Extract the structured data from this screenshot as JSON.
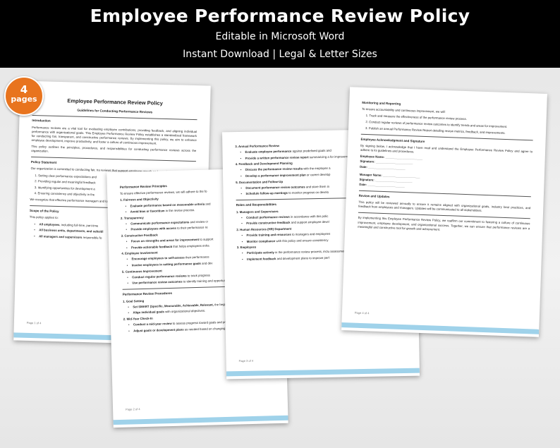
{
  "header": {
    "title": "Employee Performance Review Policy",
    "line1": "Editable in Microsoft Word",
    "line2": "Instant Download | Legal & Letter Sizes"
  },
  "badge": {
    "number": "4",
    "label": "pages"
  },
  "pages": [
    {
      "blocks": [
        {
          "title": "Employee Performance Review Policy"
        },
        {
          "subtitle": "Guidelines for Conducting Performance Reviews"
        },
        {
          "heading": "Introduction"
        },
        {
          "text": "Performance reviews are a vital tool for evaluating employee contributions, providing feedback, and aligning individual performance with organizational goals. This Employee Performance Review Policy establishes a standardized framework for conducting fair, transparent, and constructive performance reviews. By implementing this policy, we aim to enhance employee development, improve productivity, and foster a culture of continuous improvement."
        },
        {
          "text": "This policy outlines the principles, procedures, and responsibilities for conducting performance reviews across the organization."
        },
        {
          "heading": "Policy Statement"
        },
        {
          "text": "Our organization is committed to conducting fair, tra reviews that support employee growth and organiza"
        },
        {
          "num": "1. Setting clear performance expectations and"
        },
        {
          "num": "2. Providing regular and meaningful feedback"
        },
        {
          "num": "3. Identifying opportunities for development a"
        },
        {
          "num": "4. Ensuring consistency and objectivity in the"
        },
        {
          "text": "We recognize that effective performance managem and long-term success."
        },
        {
          "heading": "Scope of the Policy"
        },
        {
          "text": "This policy applies to:"
        },
        {
          "bullet": {
            "bold": "All employees",
            "text": ", including full-time, part-time"
          }
        },
        {
          "bullet": {
            "bold": "All business units, departments, and subsidi",
            "text": ""
          }
        },
        {
          "bullet": {
            "bold": "All managers and supervisors",
            "text": " responsible fo"
          }
        }
      ],
      "footer": "Page 1 of 4"
    },
    {
      "blocks": [
        {
          "heading": "Performance Review Principles"
        },
        {
          "text": "To ensure effective performance reviews, we will adhere to the fo"
        },
        {
          "sub": "1. Fairness and Objectivity"
        },
        {
          "bullet": {
            "bold": "Evaluate performance based on measurable criteria",
            "text": " and"
          }
        },
        {
          "bullet": {
            "bold": "Avoid bias or favoritism",
            "text": " in the review process."
          }
        },
        {
          "sub": "2. Transparency"
        },
        {
          "bullet": {
            "bold": "Communicate performance expectations",
            "text": " and review cr"
          }
        },
        {
          "bullet": {
            "bold": "Provide employees with access",
            "text": " to their performance re"
          }
        },
        {
          "sub": "3. Constructive Feedback"
        },
        {
          "bullet": {
            "bold": "Focus on strengths and areas for improvement",
            "text": " to support"
          }
        },
        {
          "bullet": {
            "bold": "Provide actionable feedback",
            "text": " that helps employees enha"
          }
        },
        {
          "sub": "4. Employee Involvement"
        },
        {
          "bullet": {
            "bold": "Encourage employees to self-assess",
            "text": " their performance"
          }
        },
        {
          "bullet": {
            "bold": "Involve employees in setting performance goals",
            "text": " and dev"
          }
        },
        {
          "sub": "5. Continuous Improvement"
        },
        {
          "bullet": {
            "bold": "Conduct regular performance reviews",
            "text": " to track progress"
          }
        },
        {
          "bullet": {
            "bold": "Use performance review outcomes",
            "text": " to identify training and opportunities."
          }
        },
        {
          "heading": "Performance Review Procedures"
        },
        {
          "sub": "1. Goal Setting"
        },
        {
          "bullet": {
            "bold": "Set SMART (Specific, Measurable, Achievable, Relevant,",
            "text": " the beginning of the review period."
          }
        },
        {
          "bullet": {
            "bold": "Align individual goals",
            "text": " with organizational objectives."
          }
        },
        {
          "sub": "2. Mid-Year Check-In"
        },
        {
          "bullet": {
            "bold": "Conduct a mid-year review",
            "text": " to assess progress toward goals and provide feedback."
          }
        },
        {
          "bullet": {
            "bold": "Adjust goals or development plans",
            "text": " as needed based on changing priorities or circumstances."
          }
        }
      ],
      "footer": "Page 2 of 4"
    },
    {
      "blocks": [
        {
          "sub": "3. Annual Performance Review"
        },
        {
          "bullet": {
            "bold": "Evaluate employee performance",
            "text": " against predefined goals and"
          }
        },
        {
          "bullet": {
            "bold": "Provide a written performance review report",
            "text": " summarizing a for improvement."
          }
        },
        {
          "sub": "4. Feedback and Development Planning"
        },
        {
          "bullet": {
            "bold": "Discuss the performance review results",
            "text": " with the employee a"
          }
        },
        {
          "bullet": {
            "bold": "Develop a performance improvement plan",
            "text": " or career develop"
          }
        },
        {
          "sub": "5. Documentation and Follow-Up"
        },
        {
          "bullet": {
            "bold": "Document performance review outcomes",
            "text": " and store them in"
          }
        },
        {
          "bullet": {
            "bold": "Schedule follow-up meetings",
            "text": " to monitor progress on develo"
          }
        },
        {
          "heading": "Roles and Responsibilities"
        },
        {
          "sub": "1. Managers and Supervisors"
        },
        {
          "bullet": {
            "bold": "Conduct performance reviews",
            "text": " in accordance with this polic"
          }
        },
        {
          "bullet": {
            "bold": "Provide constructive feedback",
            "text": " and support employee devel"
          }
        },
        {
          "sub": "2. Human Resources (HR) Department"
        },
        {
          "bullet": {
            "bold": "Provide training and resources",
            "text": " to managers and employees"
          }
        },
        {
          "bullet": {
            "bold": "Monitor compliance",
            "text": " with this policy and ensure consistency"
          }
        },
        {
          "sub": "3. Employees"
        },
        {
          "bullet": {
            "bold": "Participate actively",
            "text": " in the performance review process, inclu assessment."
          }
        },
        {
          "bullet": {
            "bold": "Implement feedback",
            "text": " and development plans to improve perf"
          }
        }
      ],
      "footer": "Page 3 of 4"
    },
    {
      "blocks": [
        {
          "heading": "Monitoring and Reporting"
        },
        {
          "text": "To ensure accountability and continuous improvement, we will:"
        },
        {
          "num": "1. Track and measure the effectiveness of the performance review process."
        },
        {
          "num": "2. Conduct regular reviews of performance review outcomes to identify trends and areas for improvement."
        },
        {
          "num": "3. Publish an annual Performance Review Report detailing review metrics, feedback, and improvements."
        },
        {
          "heading": "Employee Acknowledgment and Signature"
        },
        {
          "text": "By signing below, I acknowledge that I have read and understand the Employee Performance Review Policy and agree to adhere to its guidelines and procedures."
        },
        {
          "field": "Employee Name: ______________________"
        },
        {
          "field": "Signature: ______________________"
        },
        {
          "field": "Date: ______________________"
        },
        {
          "field": "Manager Name: ______________________"
        },
        {
          "field": "Signature: ______________________"
        },
        {
          "field": "Date: ______________________"
        },
        {
          "heading": "Review and Updates"
        },
        {
          "text": "This policy will be reviewed annually to ensure it remains aligned with organizational goals, industry best practices, and feedback from employees and managers. Updates will be communicated to all stakeholders."
        },
        {
          "text": "By implementing this Employee Performance Review Policy, we reaffirm our commitment to fostering a culture of continuous improvement, employee development, and organizational success. Together, we can ensure that performance reviews are a meaningful and constructive tool for growth and achievement."
        }
      ],
      "footer": "Page 4 of 4"
    }
  ]
}
